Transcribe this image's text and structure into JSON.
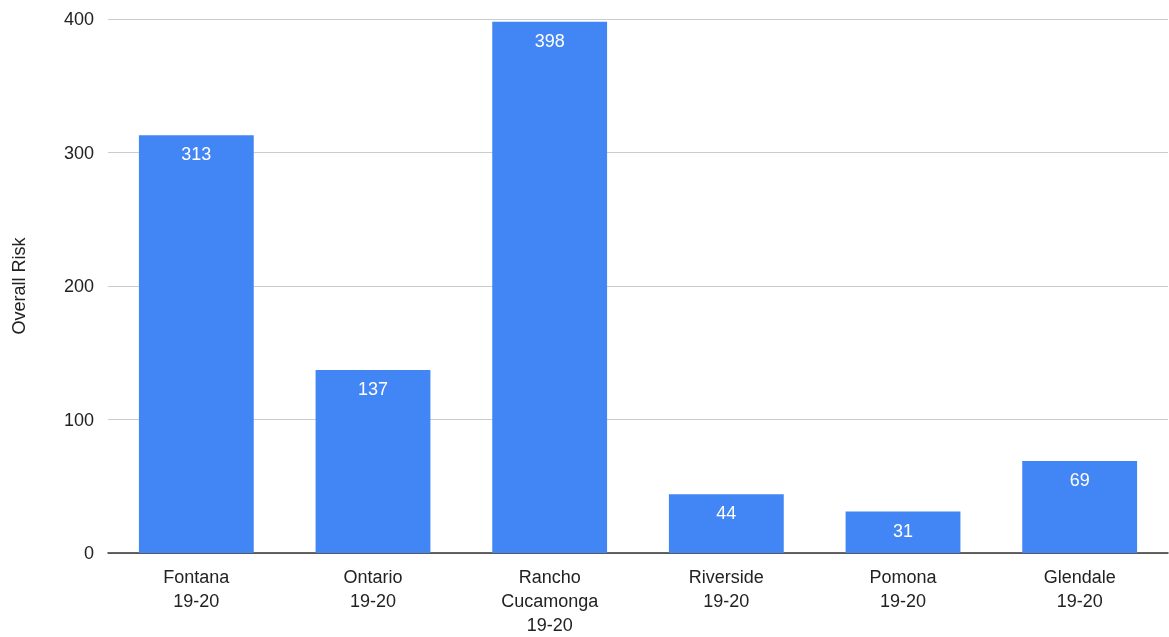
{
  "chart_data": {
    "type": "bar",
    "ylabel": "Overall Risk",
    "categories": [
      "Fontana\n19-20",
      "Ontario\n19-20",
      "Rancho\nCucamonga\n19-20",
      "Riverside\n19-20",
      "Pomona\n19-20",
      "Glendale\n19-20"
    ],
    "values": [
      313,
      137,
      398,
      44,
      31,
      69
    ],
    "color": "#4285f4",
    "ylim": [
      0,
      400
    ],
    "yticks": [
      0,
      100,
      200,
      300,
      400
    ],
    "grid": "y",
    "data_labels": true
  }
}
